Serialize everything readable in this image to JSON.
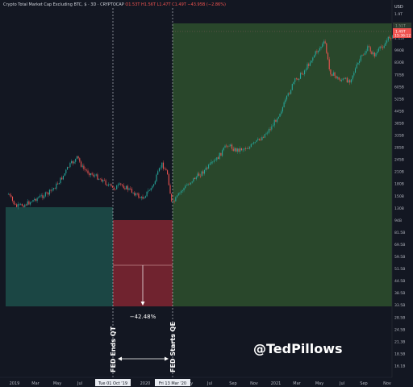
{
  "header": {
    "symbol": "Crypto Total Market Cap Excluding BTC, $ · 3D · CRYPTOCAP",
    "ohlc": "O1.53T H1.56T L1.47T C1.49T −43.95B (−2.86%)"
  },
  "currency_label": "USD",
  "price_tags": {
    "upper": "1.51T",
    "current": "1.49T",
    "countdown": "15:36:12"
  },
  "watermark": "@TedPillows",
  "chart_data": {
    "type": "candlestick",
    "title": "Crypto Total Market Cap Excluding BTC, $ · 3D · CRYPTOCAP",
    "y_scale": "log",
    "y_ticks": [
      "1.9T",
      "1.5T",
      "1.15T",
      "990B",
      "830B",
      "705B",
      "605B",
      "525B",
      "445B",
      "385B",
      "335B",
      "285B",
      "245B",
      "210B",
      "180B",
      "150B",
      "130B",
      "94B",
      "81.5B",
      "69.5B",
      "59.5B",
      "51.5B",
      "44.5B",
      "38.5B",
      "33.5B",
      "28.5B",
      "24.5B",
      "21.3B",
      "18.5B",
      "16.1B"
    ],
    "x_ticks": [
      "2019",
      "Mar",
      "May",
      "Jul",
      "Sep",
      "Nov",
      "2020",
      "Mar",
      "May",
      "Jul",
      "Sep",
      "Nov",
      "2021",
      "Mar",
      "May",
      "Jul",
      "Sep",
      "Nov"
    ],
    "x_highlights": [
      "Tue 01 Oct '19",
      "Fri 13 Mar '20"
    ],
    "series_path": [
      {
        "date": "2018-12-15",
        "value": 55
      },
      {
        "date": "2019-01-05",
        "value": 42
      },
      {
        "date": "2019-02-05",
        "value": 45
      },
      {
        "date": "2019-03-01",
        "value": 50
      },
      {
        "date": "2019-04-05",
        "value": 56
      },
      {
        "date": "2019-04-25",
        "value": 65
      },
      {
        "date": "2019-05-15",
        "value": 80
      },
      {
        "date": "2019-06-01",
        "value": 100
      },
      {
        "date": "2019-06-25",
        "value": 120
      },
      {
        "date": "2019-07-10",
        "value": 95
      },
      {
        "date": "2019-08-01",
        "value": 85
      },
      {
        "date": "2019-09-01",
        "value": 75
      },
      {
        "date": "2019-10-01",
        "value": 62
      },
      {
        "date": "2019-10-25",
        "value": 67
      },
      {
        "date": "2019-11-25",
        "value": 58
      },
      {
        "date": "2019-12-20",
        "value": 50
      },
      {
        "date": "2020-01-20",
        "value": 65
      },
      {
        "date": "2020-02-14",
        "value": 105
      },
      {
        "date": "2020-03-01",
        "value": 85
      },
      {
        "date": "2020-03-13",
        "value": 44
      },
      {
        "date": "2020-04-10",
        "value": 60
      },
      {
        "date": "2020-05-10",
        "value": 75
      },
      {
        "date": "2020-06-10",
        "value": 90
      },
      {
        "date": "2020-07-15",
        "value": 115
      },
      {
        "date": "2020-08-15",
        "value": 160
      },
      {
        "date": "2020-09-05",
        "value": 140
      },
      {
        "date": "2020-10-15",
        "value": 150
      },
      {
        "date": "2020-11-15",
        "value": 180
      },
      {
        "date": "2020-12-15",
        "value": 230
      },
      {
        "date": "2021-01-15",
        "value": 350
      },
      {
        "date": "2021-02-15",
        "value": 600
      },
      {
        "date": "2021-03-15",
        "value": 750
      },
      {
        "date": "2021-04-15",
        "value": 1100
      },
      {
        "date": "2021-05-12",
        "value": 1400
      },
      {
        "date": "2021-05-25",
        "value": 750
      },
      {
        "date": "2021-06-20",
        "value": 630
      },
      {
        "date": "2021-07-20",
        "value": 620
      },
      {
        "date": "2021-08-20",
        "value": 1000
      },
      {
        "date": "2021-09-10",
        "value": 1250
      },
      {
        "date": "2021-09-25",
        "value": 1050
      },
      {
        "date": "2021-10-25",
        "value": 1350
      },
      {
        "date": "2021-11-10",
        "value": 1600
      },
      {
        "date": "2021-11-22",
        "value": 1490
      }
    ],
    "annotations": {
      "qt_end": {
        "date": "2019-10-01",
        "label": "FED Ends QT"
      },
      "qe_start": {
        "date": "2020-03-13",
        "label": "FED Starts QE"
      },
      "drawdown": "−42.48%"
    },
    "grid": false
  }
}
